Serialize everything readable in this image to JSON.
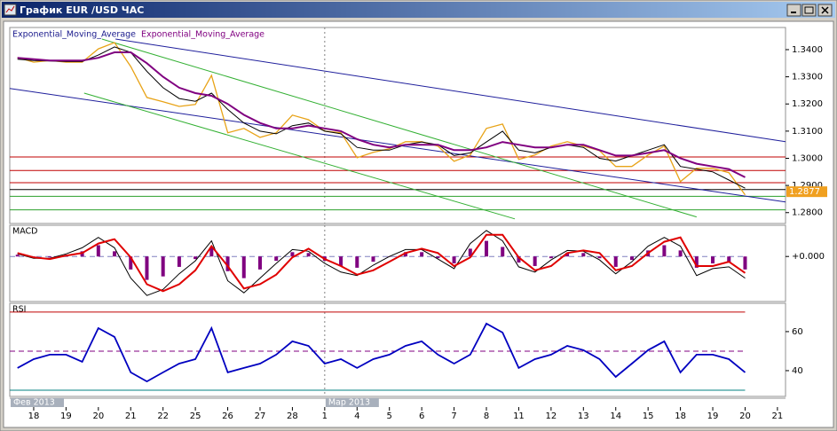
{
  "window": {
    "title": "График EUR /USD  ЧАС"
  },
  "xaxis": {
    "xlim": [
      -0.74,
      23.25
    ],
    "x": [
      -0.5,
      0,
      0.5,
      1,
      1.5,
      2,
      2.5,
      3,
      3.5,
      4,
      4.5,
      5,
      5.5,
      6,
      6.5,
      7,
      7.5,
      8,
      8.5,
      9,
      9.5,
      10,
      10.5,
      11,
      11.5,
      12,
      12.5,
      13,
      13.5,
      14,
      14.5,
      15,
      15.5,
      16,
      16.5,
      17,
      17.5,
      18,
      18.5,
      19,
      19.5,
      20,
      20.5,
      21,
      21.5,
      22
    ],
    "xticks": [
      {
        "value": 0,
        "label": "18"
      },
      {
        "value": 1,
        "label": "19"
      },
      {
        "value": 2,
        "label": "20"
      },
      {
        "value": 3,
        "label": "21"
      },
      {
        "value": 4,
        "label": "22"
      },
      {
        "value": 5,
        "label": "25"
      },
      {
        "value": 6,
        "label": "26"
      },
      {
        "value": 7,
        "label": "27"
      },
      {
        "value": 8,
        "label": "28"
      },
      {
        "value": 9,
        "label": "1"
      },
      {
        "value": 10,
        "label": "4"
      },
      {
        "value": 11,
        "label": "5"
      },
      {
        "value": 12,
        "label": "6"
      },
      {
        "value": 13,
        "label": "7"
      },
      {
        "value": 14,
        "label": "8"
      },
      {
        "value": 15,
        "label": "11"
      },
      {
        "value": 16,
        "label": "12"
      },
      {
        "value": 17,
        "label": "13"
      },
      {
        "value": 18,
        "label": "14"
      },
      {
        "value": 19,
        "label": "15"
      },
      {
        "value": 20,
        "label": "18"
      },
      {
        "value": 21,
        "label": "19"
      },
      {
        "value": 22,
        "label": "20"
      },
      {
        "value": 23,
        "label": "21"
      }
    ],
    "months": [
      {
        "value": -0.74,
        "label": "Фев 2013"
      },
      {
        "value": 9,
        "label": "Мар 2013"
      }
    ]
  },
  "chart_data": [
    {
      "type": "line",
      "ylim": [
        1.276,
        1.3475
      ],
      "yticks": [
        {
          "value": 1.34,
          "label": "1.3400"
        },
        {
          "value": 1.33,
          "label": "1.3300"
        },
        {
          "value": 1.32,
          "label": "1.3200"
        },
        {
          "value": 1.31,
          "label": "1.3100"
        },
        {
          "value": 1.3,
          "label": "1.3000"
        },
        {
          "value": 1.29,
          "label": "1.2900"
        },
        {
          "value": 1.28,
          "label": "1.2800"
        }
      ],
      "series": [
        {
          "color": "#e8a317",
          "linewidth": 1.3,
          "values": [
            1.3371,
            1.3354,
            1.336,
            1.3354,
            1.3354,
            1.3403,
            1.3426,
            1.3338,
            1.3224,
            1.3208,
            1.3191,
            1.3198,
            1.3305,
            1.3094,
            1.311,
            1.3077,
            1.3094,
            1.3159,
            1.3142,
            1.31,
            1.3094,
            1.3002,
            1.3022,
            1.3035,
            1.3061,
            1.3061,
            1.3045,
            1.2989,
            1.3012,
            1.311,
            1.3126,
            1.2996,
            1.3012,
            1.3045,
            1.3061,
            1.3045,
            1.3028,
            1.297,
            1.297,
            1.3012,
            1.3045,
            1.2914,
            1.2963,
            1.2963,
            1.2947,
            1.2865
          ]
        },
        {
          "name": "Exponential_Moving_Average",
          "color": "#000000",
          "linewidth": 1,
          "values": [
            1.3365,
            1.336,
            1.3358,
            1.3356,
            1.3356,
            1.338,
            1.341,
            1.339,
            1.332,
            1.326,
            1.322,
            1.321,
            1.324,
            1.318,
            1.313,
            1.31,
            1.309,
            1.312,
            1.313,
            1.31,
            1.309,
            1.304,
            1.303,
            1.303,
            1.305,
            1.306,
            1.305,
            1.301,
            1.302,
            1.306,
            1.31,
            1.303,
            1.302,
            1.304,
            1.305,
            1.304,
            1.3,
            1.299,
            1.301,
            1.303,
            1.305,
            1.297,
            1.296,
            1.295,
            1.292,
            1.289
          ]
        },
        {
          "name": "Exponential_Moving_Average",
          "color": "#800080",
          "linewidth": 2,
          "values": [
            1.337,
            1.3365,
            1.336,
            1.336,
            1.336,
            1.337,
            1.339,
            1.339,
            1.335,
            1.33,
            1.326,
            1.324,
            1.323,
            1.32,
            1.316,
            1.313,
            1.311,
            1.311,
            1.312,
            1.311,
            1.31,
            1.307,
            1.305,
            1.304,
            1.305,
            1.305,
            1.305,
            1.303,
            1.303,
            1.304,
            1.306,
            1.305,
            1.304,
            1.304,
            1.305,
            1.305,
            1.303,
            1.301,
            1.301,
            1.302,
            1.303,
            1.3,
            1.298,
            1.297,
            1.296,
            1.293
          ]
        }
      ],
      "levels": [
        {
          "value": 1.3005,
          "color": "#c00000"
        },
        {
          "value": 1.2955,
          "color": "#c00000"
        },
        {
          "value": 1.291,
          "color": "#c00000"
        },
        {
          "value": 1.2885,
          "color": "#000000"
        },
        {
          "value": 1.286,
          "color": "#2ca02c"
        },
        {
          "value": 1.281,
          "color": "#2ca02c"
        }
      ],
      "trend_lines": [
        {
          "x": [
            2.53,
            23.25
          ],
          "values": [
            1.3439,
            1.3061
          ],
          "color": "#1f1f9c"
        },
        {
          "x": [
            -0.74,
            23.25
          ],
          "values": [
            1.3257,
            1.2839
          ],
          "color": "#1f1f9c"
        },
        {
          "x": [
            2.11,
            20.5
          ],
          "values": [
            1.3439,
            1.2784
          ],
          "color": "#33b033"
        },
        {
          "x": [
            1.56,
            14.88
          ],
          "values": [
            1.324,
            1.2777
          ],
          "color": "#33b033"
        }
      ],
      "last_price": 1.2877,
      "last_price_color": "#f0a020"
    },
    {
      "type": "line",
      "title": "MACD",
      "ylim": [
        -0.0052,
        0.0034
      ],
      "yticks": [
        {
          "value": 0,
          "label": "+0.000"
        }
      ],
      "series": [
        {
          "type": "bar",
          "color": "#800080",
          "values": [
            0.0002,
            -0.0001,
            -0.0001,
            0.0002,
            0.0006,
            0.0013,
            0.0006,
            -0.0015,
            -0.0027,
            -0.0023,
            -0.0012,
            -0.0003,
            0.0011,
            -0.0017,
            -0.0025,
            -0.0015,
            -0.0005,
            0.0005,
            0.0004,
            -0.0005,
            -0.0011,
            -0.0013,
            -0.0006,
            0,
            0.0005,
            0.0005,
            -0.0002,
            -0.0008,
            0.0009,
            0.0018,
            0.0011,
            -0.0007,
            -0.0011,
            -0.0002,
            0.0004,
            0.0004,
            -0.0002,
            -0.0012,
            -0.0004,
            0.0007,
            0.0013,
            0.0007,
            -0.0013,
            -0.0008,
            -0.0007,
            -0.0015
          ]
        },
        {
          "color": "#000000",
          "linewidth": 1,
          "values": [
            0.0003,
            -0.0002,
            -0.0002,
            0.0003,
            0.001,
            0.0022,
            0.001,
            -0.0025,
            -0.0045,
            -0.0038,
            -0.002,
            -0.0005,
            0.0018,
            -0.0028,
            -0.0042,
            -0.0025,
            -0.0008,
            0.0008,
            0.0006,
            -0.0008,
            -0.0018,
            -0.0022,
            -0.001,
            0,
            0.0008,
            0.0008,
            -0.0003,
            -0.0014,
            0.0015,
            0.003,
            0.0018,
            -0.0012,
            -0.0018,
            -0.0004,
            0.0007,
            0.0006,
            -0.0004,
            -0.002,
            -0.0006,
            0.0012,
            0.0022,
            0.0012,
            -0.0022,
            -0.0014,
            -0.0012,
            -0.0025
          ]
        },
        {
          "color": "#e00000",
          "linewidth": 2,
          "values": [
            0.0004,
            -0.0001,
            -0.0003,
            0.0001,
            0.0004,
            0.0015,
            0.002,
            -0.0001,
            -0.0032,
            -0.004,
            -0.0032,
            -0.0016,
            0.0012,
            -0.0011,
            -0.0037,
            -0.0032,
            -0.0021,
            -0.0001,
            0.0009,
            -0.0003,
            -0.0011,
            -0.0021,
            -0.0016,
            -0.0006,
            0.0004,
            0.0009,
            0.0004,
            -0.0011,
            -0.0001,
            0.0025,
            0.0025,
            -0.0001,
            -0.0016,
            -0.0011,
            0.0004,
            0.0007,
            0.0004,
            -0.0016,
            -0.0011,
            0.0004,
            0.0017,
            0.0022,
            -0.0011,
            -0.0011,
            -0.0006,
            -0.0019
          ]
        }
      ],
      "levels": [
        {
          "value": 0,
          "color": "#8080c0",
          "dash": true
        }
      ]
    },
    {
      "type": "line",
      "title": "RSI",
      "ylim": [
        26.8,
        73.6
      ],
      "yticks": [
        60,
        40
      ],
      "series": [
        {
          "color": "#0000c0",
          "linewidth": 1.8,
          "values": [
            41.4,
            45.9,
            48.2,
            48.2,
            44.5,
            61.8,
            57.3,
            39.1,
            34.5,
            39.1,
            43.6,
            45.9,
            61.8,
            39.1,
            41.4,
            43.6,
            48.2,
            55,
            52.7,
            43.6,
            45.9,
            41.4,
            45.9,
            48.2,
            52.7,
            55,
            48.2,
            43.6,
            48.2,
            64.1,
            59.5,
            41.4,
            45.9,
            48.2,
            52.7,
            50.5,
            45.9,
            36.8,
            43.6,
            50.5,
            55,
            39.1,
            48.2,
            48.2,
            45.9,
            39.1
          ]
        }
      ],
      "levels": [
        {
          "value": 70,
          "color": "#c00000"
        },
        {
          "value": 50,
          "color": "#800080",
          "dash": true
        },
        {
          "value": 30,
          "color": "#008080"
        }
      ]
    }
  ]
}
